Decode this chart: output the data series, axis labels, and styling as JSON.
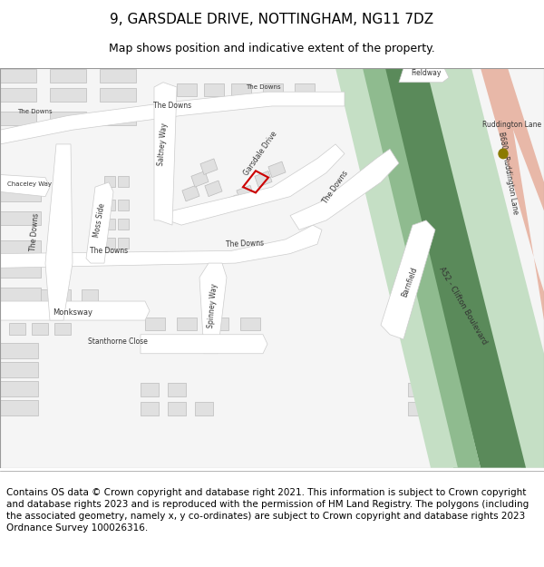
{
  "title_line1": "9, GARSDALE DRIVE, NOTTINGHAM, NG11 7DZ",
  "title_line2": "Map shows position and indicative extent of the property.",
  "footer_text": "Contains OS data © Crown copyright and database right 2021. This information is subject to Crown copyright and database rights 2023 and is reproduced with the permission of HM Land Registry. The polygons (including the associated geometry, namely x, y co-ordinates) are subject to Crown copyright and database rights 2023 Ordnance Survey 100026316.",
  "bg_color": "#ffffff",
  "map_bg": "#f5f5f5",
  "road_color": "#ffffff",
  "road_stroke": "#cccccc",
  "building_fill": "#e0e0e0",
  "building_stroke": "#bbbbbb",
  "green_road_dark": "#5a8a5a",
  "green_road_light": "#8fbb8f",
  "green_road_pale": "#c5dfc5",
  "salmon_road": "#e8b8a8",
  "red_plot_color": "#cc0000",
  "dot_color": "#8b7a00",
  "title_fontsize": 11,
  "subtitle_fontsize": 9,
  "footer_fontsize": 7.5
}
